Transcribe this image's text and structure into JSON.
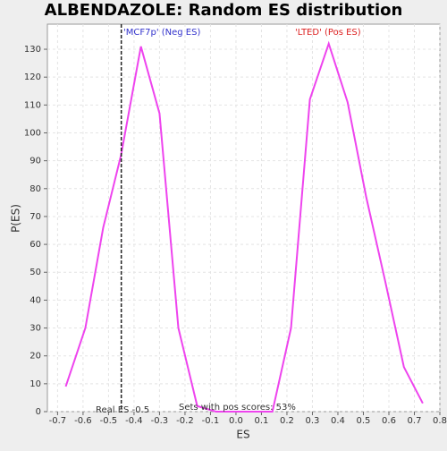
{
  "chart_data": {
    "type": "line",
    "title": "ALBENDAZOLE: Random ES distribution",
    "x_label": "ES",
    "y_label": "P(ES)",
    "x": [
      -0.668,
      -0.591,
      -0.521,
      -0.451,
      -0.373,
      -0.3,
      -0.226,
      -0.152,
      -0.078,
      -0.005,
      0.069,
      0.143,
      0.216,
      0.29,
      0.364,
      0.438,
      0.511,
      0.585,
      0.659,
      0.733
    ],
    "series": [
      {
        "color": "#ee44ee",
        "values": [
          9,
          30,
          66,
          92,
          131,
          107,
          30,
          2,
          0,
          0,
          0,
          0,
          30,
          112,
          132,
          111,
          77,
          47,
          16,
          3
        ]
      }
    ],
    "xlim": [
      -0.74,
      0.8
    ],
    "ylim": [
      0,
      139
    ],
    "xticks": [
      -0.7,
      -0.6,
      -0.5,
      -0.4,
      -0.3,
      -0.2,
      -0.1,
      {
        "value": 0,
        "label": "0.0"
      },
      0.1,
      0.2,
      0.3,
      0.4,
      0.5,
      0.6,
      0.7,
      0.8
    ],
    "yticks": [
      0,
      10,
      20,
      30,
      40,
      50,
      60,
      70,
      80,
      90,
      100,
      110,
      120,
      130
    ],
    "grid": true,
    "vline": -0.45,
    "neg_label": "'MCF7p' (Neg ES)",
    "neg_color": "#3333cc",
    "pos_label": "'LTED' (Pos ES)",
    "pos_color": "#dd2222",
    "real_es_label": "Real ES -0.5",
    "pos_scores_label": "Sets with pos scores: 53%"
  }
}
